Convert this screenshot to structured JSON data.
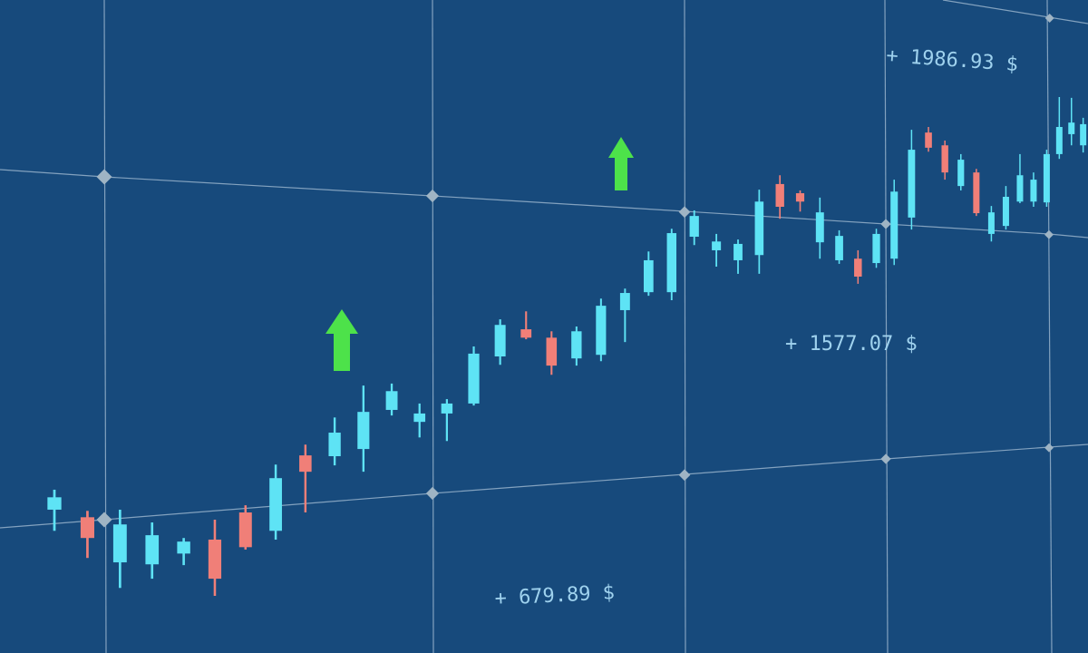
{
  "chart_data": {
    "type": "candlestick",
    "annotations": [
      "+ 1986.93 $",
      "+ 1577.07 $",
      "+ 679.89 $"
    ],
    "up_color": "#5ee3f5",
    "down_color": "#f07f78",
    "open": [
      881,
      862,
      749,
      744,
      771,
      806,
      874,
      828,
      1017,
      1015,
      1033,
      1131,
      1101,
      1122,
      1147,
      1265,
      1333,
      1312,
      1260,
      1269,
      1381,
      1426,
      1426,
      1565,
      1531,
      1506,
      1519,
      1697,
      1674,
      1551,
      1506,
      1510,
      1499,
      1510,
      1613,
      1826,
      1794,
      1692,
      1726,
      1572,
      1592,
      1653,
      1653,
      1651,
      1772,
      1822,
      1794
    ],
    "high": [
      931,
      878,
      881,
      849,
      810,
      856,
      892,
      994,
      1044,
      1112,
      1192,
      1197,
      1147,
      1158,
      1290,
      1358,
      1378,
      1328,
      1340,
      1410,
      1435,
      1528,
      1585,
      1631,
      1572,
      1558,
      1683,
      1719,
      1681,
      1663,
      1581,
      1531,
      1585,
      1708,
      1833,
      1840,
      1806,
      1772,
      1735,
      1642,
      1692,
      1772,
      1726,
      1783,
      1915,
      1913,
      1863
    ],
    "low": [
      828,
      760,
      685,
      708,
      742,
      665,
      781,
      806,
      874,
      992,
      976,
      1117,
      1062,
      1053,
      1142,
      1244,
      1308,
      1219,
      1242,
      1253,
      1301,
      1417,
      1406,
      1544,
      1490,
      1472,
      1472,
      1610,
      1628,
      1510,
      1497,
      1447,
      1487,
      1494,
      1583,
      1778,
      1708,
      1681,
      1617,
      1553,
      1583,
      1649,
      1640,
      1640,
      1760,
      1794,
      1776
    ],
    "close": [
      912,
      810,
      844,
      817,
      801,
      708,
      787,
      960,
      976,
      1074,
      1126,
      1178,
      1122,
      1147,
      1272,
      1344,
      1312,
      1242,
      1328,
      1392,
      1424,
      1506,
      1574,
      1617,
      1553,
      1547,
      1653,
      1640,
      1653,
      1626,
      1567,
      1465,
      1572,
      1678,
      1783,
      1788,
      1726,
      1758,
      1624,
      1626,
      1665,
      1719,
      1708,
      1772,
      1840,
      1851,
      1847
    ]
  }
}
